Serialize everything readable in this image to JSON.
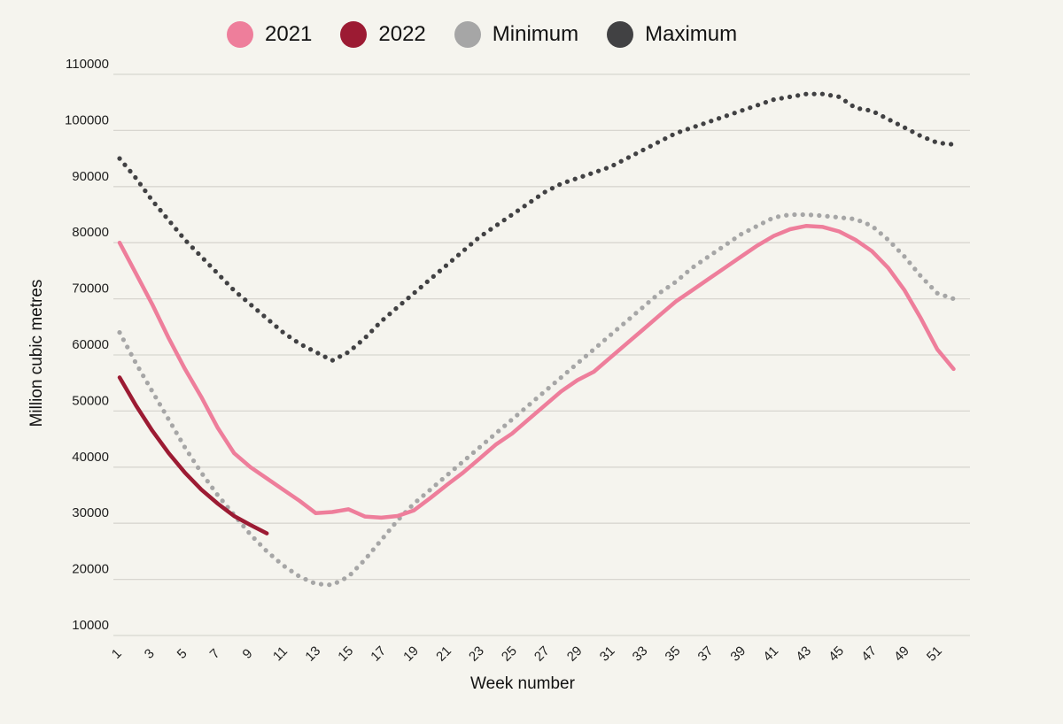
{
  "page": {
    "background": "#f5f4ee",
    "gridline_color": "#d8d6d0",
    "text_color": "#1f1f1f"
  },
  "chart_data": {
    "type": "line",
    "title": "",
    "xlabel": "Week number",
    "ylabel": "Million cubic metres",
    "grid": "horizontal",
    "legend_position": "top",
    "x_unit": "week",
    "x_range": [
      1,
      53
    ],
    "x_ticks": [
      1,
      3,
      5,
      7,
      9,
      11,
      13,
      15,
      17,
      19,
      21,
      23,
      25,
      27,
      29,
      31,
      33,
      35,
      37,
      39,
      41,
      43,
      45,
      47,
      49,
      51
    ],
    "ylim": [
      10000,
      110000
    ],
    "y_ticks": [
      10000,
      20000,
      30000,
      40000,
      50000,
      60000,
      70000,
      80000,
      90000,
      100000,
      110000
    ],
    "series": [
      {
        "name": "2021",
        "color": "#ee7e9b",
        "style": "solid",
        "start_week": 1,
        "values": [
          80000,
          74500,
          69000,
          63000,
          57500,
          52500,
          47000,
          42500,
          40000,
          38000,
          36000,
          34000,
          31800,
          32000,
          32500,
          31200,
          31000,
          31300,
          32300,
          34500,
          36800,
          39000,
          41500,
          44000,
          46000,
          48500,
          51000,
          53500,
          55500,
          57000,
          59500,
          62000,
          64500,
          67000,
          69500,
          71500,
          73500,
          75500,
          77500,
          79500,
          81200,
          82400,
          83000,
          82800,
          82000,
          80500,
          78500,
          75500,
          71500,
          66500,
          61000,
          57500
        ]
      },
      {
        "name": "2022",
        "color": "#9c1b33",
        "style": "solid",
        "start_week": 1,
        "values": [
          56000,
          51000,
          46500,
          42500,
          39000,
          36000,
          33500,
          31300,
          29700,
          28200
        ]
      },
      {
        "name": "Minimum",
        "color": "#a6a6a6",
        "style": "dotted",
        "start_week": 1,
        "values": [
          64000,
          58500,
          53500,
          48500,
          43500,
          39000,
          35000,
          31500,
          28000,
          25000,
          22500,
          20500,
          19200,
          19000,
          20500,
          23500,
          27000,
          30500,
          33500,
          36000,
          38500,
          41000,
          43500,
          46000,
          48500,
          51000,
          53500,
          56000,
          58500,
          61000,
          63500,
          66000,
          68500,
          71000,
          73000,
          75500,
          77500,
          79500,
          81500,
          83000,
          84500,
          85000,
          85000,
          84800,
          84500,
          84200,
          83000,
          80500,
          77500,
          74000,
          71000,
          70000
        ]
      },
      {
        "name": "Maximum",
        "color": "#414143",
        "style": "dotted",
        "start_week": 1,
        "values": [
          95000,
          91500,
          87500,
          84000,
          80500,
          77500,
          74500,
          71500,
          69000,
          66500,
          64000,
          62000,
          60500,
          59000,
          60500,
          63000,
          66000,
          68500,
          71000,
          73500,
          76000,
          78500,
          81000,
          83000,
          85000,
          87000,
          89000,
          90500,
          91500,
          92500,
          93500,
          95000,
          96500,
          98000,
          99500,
          100500,
          101500,
          102500,
          103500,
          104500,
          105500,
          106000,
          106500,
          106500,
          106000,
          104000,
          103500,
          102000,
          100500,
          99000,
          97800,
          97500
        ]
      }
    ]
  }
}
